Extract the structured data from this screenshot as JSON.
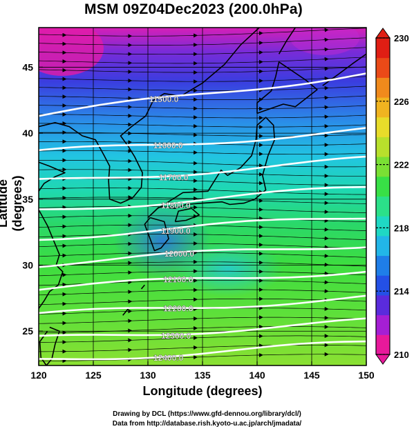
{
  "title": "MSM 09Z04Dec2023 (200.0hPa)",
  "xlabel": "Longitude (degrees)",
  "ylabel": "Latitude  (degrees)",
  "x_ticks": [
    "120",
    "125",
    "130",
    "135",
    "140",
    "145",
    "150"
  ],
  "y_ticks": [
    "25",
    "30",
    "35",
    "40",
    "45"
  ],
  "colorbar": {
    "min": 210,
    "max": 230,
    "ticks": [
      "230",
      "226",
      "222",
      "218",
      "214",
      "210"
    ],
    "colors": [
      "#e8199b",
      "#a51fd4",
      "#5a2bdc",
      "#2450e6",
      "#1f7ee8",
      "#22b6e8",
      "#1fd8c4",
      "#2be089",
      "#38e046",
      "#7ae034",
      "#b8e02c",
      "#e8dc2a",
      "#f0b420",
      "#f08a1c",
      "#ea4a18",
      "#e01e14"
    ]
  },
  "contours": [
    {
      "label": "11500.0"
    },
    {
      "label": "11600.0"
    },
    {
      "label": "11700.0"
    },
    {
      "label": "11800.0"
    },
    {
      "label": "11900.0"
    },
    {
      "label": "12000.0"
    },
    {
      "label": "12100.0"
    },
    {
      "label": "12200.0"
    },
    {
      "label": "12300.0"
    },
    {
      "label": "12400.0"
    }
  ],
  "credits": {
    "line1": "Drawing by DCL (https://www.gfd-dennou.org/library/dcl/)",
    "line2": "Data from http://database.rish.kyoto-u.ac.jp/arch/jmadata/"
  }
}
